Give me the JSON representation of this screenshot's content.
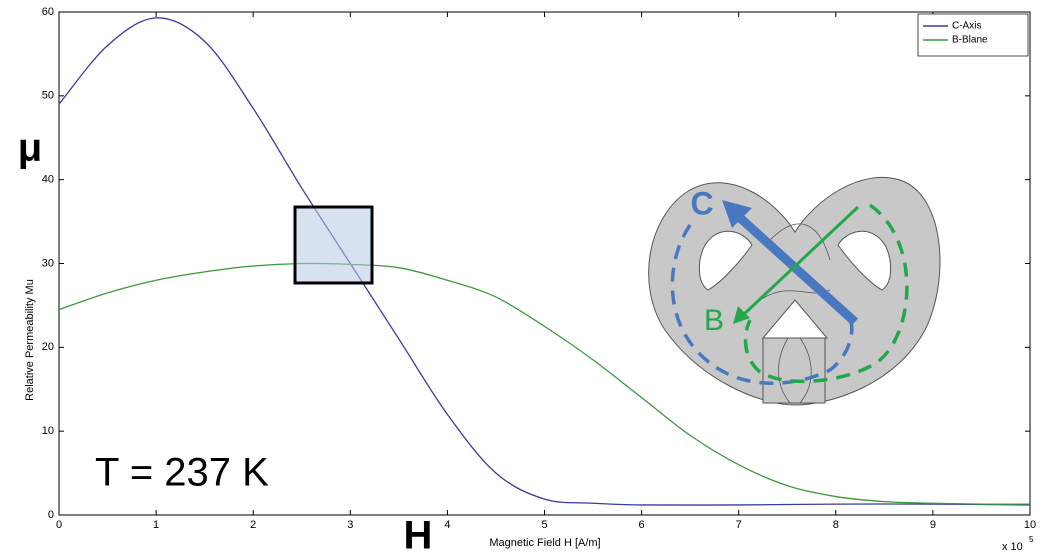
{
  "chart_data": {
    "type": "line",
    "xlabel": "Magnetic Field H [A/m]",
    "ylabel": "Relative Permeability Mu",
    "x_multiplier": "x 10",
    "x_multiplier_exponent": "5",
    "xlim": [
      0,
      10
    ],
    "ylim": [
      0,
      60
    ],
    "xticks": [
      0,
      1,
      2,
      3,
      4,
      5,
      6,
      7,
      8,
      9,
      10
    ],
    "yticks": [
      0,
      10,
      20,
      30,
      40,
      50,
      60
    ],
    "legend": "upper right",
    "annotations": {
      "mu": "μ",
      "h": "H",
      "temperature": "T = 237 K",
      "c_label": "C",
      "b_label": "B"
    },
    "series": [
      {
        "name": "C-Axis",
        "color": "#3a3aa0",
        "x": [
          0,
          0.5,
          1,
          1.5,
          2,
          2.5,
          3,
          3.5,
          4,
          4.5,
          5,
          5.5,
          6,
          7,
          8,
          9,
          10
        ],
        "values": [
          49,
          56,
          59.3,
          56.5,
          48.5,
          39,
          30,
          21,
          12,
          5,
          1.9,
          1.4,
          1.2,
          1.2,
          1.3,
          1.3,
          1.2
        ]
      },
      {
        "name": "B-Blane",
        "color": "#3a9a3a",
        "x": [
          0,
          0.5,
          1,
          1.5,
          2,
          2.5,
          3,
          3.5,
          4,
          4.5,
          5,
          5.5,
          6,
          6.5,
          7,
          7.5,
          8,
          8.5,
          9,
          9.5,
          10
        ],
        "values": [
          24.5,
          26.5,
          28,
          29,
          29.7,
          30,
          29.9,
          29.5,
          28,
          26,
          22.5,
          18.5,
          14,
          9.5,
          6,
          3.5,
          2.2,
          1.6,
          1.4,
          1.3,
          1.3
        ]
      }
    ]
  }
}
